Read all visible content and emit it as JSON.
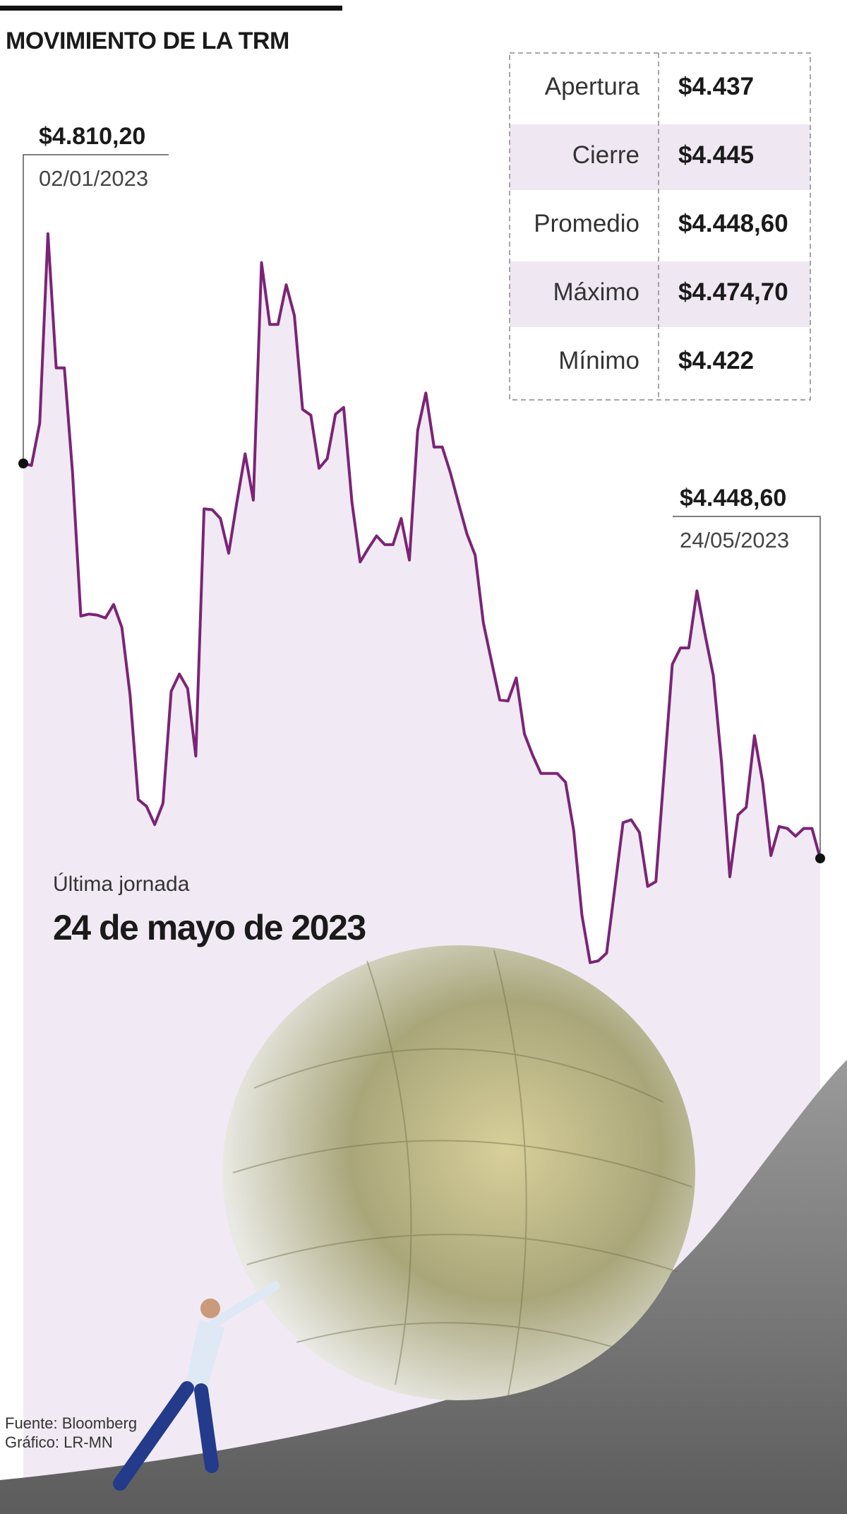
{
  "chart_data": {
    "type": "line",
    "title": "MOVIMIENTO DE LA TRM",
    "categories": [
      "02/01/2023",
      null,
      null,
      null,
      null,
      null,
      null,
      null,
      null,
      null,
      null,
      null,
      null,
      null,
      null,
      null,
      null,
      null,
      null,
      null,
      null,
      null,
      null,
      null,
      null,
      null,
      null,
      null,
      null,
      null,
      null,
      null,
      null,
      null,
      null,
      null,
      null,
      null,
      null,
      null,
      null,
      null,
      null,
      null,
      null,
      null,
      null,
      null,
      null,
      null,
      null,
      null,
      null,
      null,
      null,
      null,
      null,
      null,
      null,
      null,
      null,
      null,
      null,
      null,
      null,
      null,
      null,
      null,
      null,
      null,
      null,
      null,
      null,
      null,
      null,
      null,
      null,
      null,
      null,
      null,
      null,
      null,
      null,
      null,
      null,
      null,
      null,
      null,
      null,
      null,
      null,
      null,
      null,
      null,
      null,
      null,
      null,
      "24/05/2023"
    ],
    "values": [
      4810.2,
      4808.4,
      4847.3,
      5020.6,
      4897.7,
      4897.7,
      4801.4,
      4670.5,
      4672.3,
      4671.4,
      4668.7,
      4681.1,
      4659.9,
      4598.0,
      4502.5,
      4496.3,
      4479.5,
      4499.0,
      4601.5,
      4617.4,
      4604.2,
      4542.3,
      4768.6,
      4767.8,
      4759.8,
      4728.0,
      4774.8,
      4819.0,
      4776.6,
      4994.1,
      4937.5,
      4937.5,
      4973.8,
      4945.5,
      4859.7,
      4854.4,
      4805.8,
      4814.6,
      4855.3,
      4861.5,
      4774.8,
      4720.0,
      4732.4,
      4743.9,
      4735.9,
      4735.9,
      4759.8,
      4721.8,
      4840.3,
      4874.7,
      4825.2,
      4825.2,
      4801.4,
      4773.1,
      4745.7,
      4726.2,
      4664.3,
      4628.9,
      4593.6,
      4592.7,
      4613.9,
      4562.6,
      4543.2,
      4526.4,
      4526.4,
      4526.4,
      4518.4,
      4474.2,
      4396.4,
      4353.1,
      4354.8,
      4361.9,
      4421.2,
      4481.3,
      4483.9,
      4472.4,
      4422.9,
      4427.3,
      4527.3,
      4626.3,
      4641.3,
      4641.3,
      4693.5,
      4652.8,
      4615.7,
      4536.1,
      4431.8,
      4488.4,
      4495.4,
      4560.9,
      4518.4,
      4451.2,
      4477.7,
      4476.0,
      4468.9,
      4476.0,
      4476.0,
      4448.6
    ],
    "value_labels": [
      "$4.810,20",
      null,
      null,
      null,
      null,
      null,
      null,
      null,
      null,
      null,
      null,
      null,
      null,
      null,
      null,
      null,
      null,
      null,
      null,
      null,
      null,
      null,
      null,
      null,
      null,
      null,
      null,
      null,
      null,
      null,
      null,
      null,
      null,
      null,
      null,
      null,
      null,
      null,
      null,
      null,
      null,
      null,
      null,
      null,
      null,
      null,
      null,
      null,
      null,
      null,
      null,
      null,
      null,
      null,
      null,
      null,
      null,
      null,
      null,
      null,
      null,
      null,
      null,
      null,
      null,
      null,
      null,
      null,
      null,
      null,
      null,
      null,
      null,
      null,
      null,
      null,
      null,
      null,
      null,
      null,
      null,
      null,
      null,
      null,
      null,
      null,
      null,
      null,
      null,
      null,
      null,
      null,
      null,
      null,
      null,
      null,
      null,
      "$4.448,60"
    ],
    "color": "#7b2477",
    "area_color": "#f1eaf4",
    "table": {
      "rows": [
        [
          "Apertura",
          "$4.437"
        ],
        [
          "Cierre",
          "$4.445"
        ],
        [
          "Promedio",
          "$4.448,60"
        ],
        [
          "Máximo",
          "$4.474,70"
        ],
        [
          "Mínimo",
          "$4.422"
        ]
      ]
    },
    "subtitle": "Última jornada",
    "date_headline": "24 de mayo de 2023",
    "source": [
      "Fuente: Bloomberg",
      "Gráfico: LR-MN"
    ]
  }
}
